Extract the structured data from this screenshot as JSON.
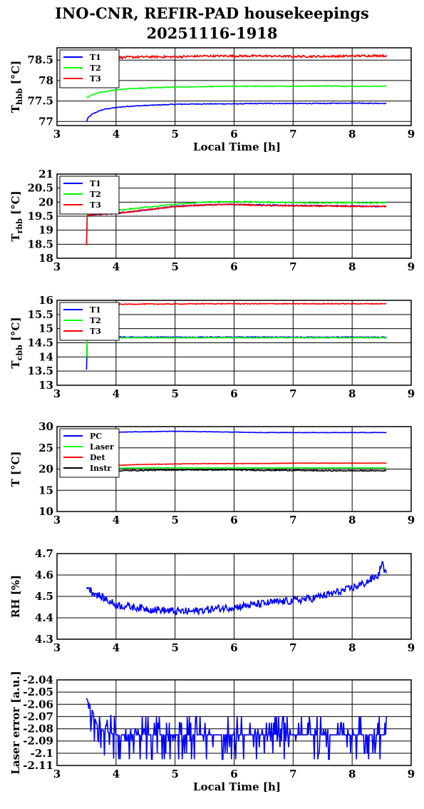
{
  "title": "INO-CNR, REFIR-PAD housekeepings",
  "subtitle": "20251116-1918",
  "chart_data": [
    {
      "type": "line",
      "ylabel_main": "T",
      "ylabel_sub": "hbb",
      "ylabel_unit": " [°C]",
      "xlabel": "Local Time [h]",
      "xlim": [
        3,
        9
      ],
      "ylim": [
        76.9,
        78.8
      ],
      "xticks": [
        3,
        4,
        5,
        6,
        7,
        8,
        9
      ],
      "yticks": [
        77,
        77.5,
        78,
        78.5
      ],
      "ytick_labels": [
        "77",
        "77.5",
        "78",
        "78.5"
      ],
      "grid": true,
      "legend": "top-left",
      "x": [
        3.5,
        3.52,
        3.55,
        3.6,
        3.7,
        3.8,
        4.0,
        4.2,
        4.5,
        5.0,
        5.5,
        6.0,
        6.5,
        7.0,
        7.5,
        8.0,
        8.5,
        8.58
      ],
      "series": [
        {
          "name": "T1",
          "color": "#0000ff",
          "noise": 0.01,
          "values": [
            77.0,
            77.08,
            77.12,
            77.18,
            77.25,
            77.3,
            77.34,
            77.37,
            77.39,
            77.42,
            77.43,
            77.43,
            77.44,
            77.44,
            77.44,
            77.45,
            77.44,
            77.44
          ]
        },
        {
          "name": "T2",
          "color": "#00ff00",
          "noise": 0.01,
          "values": [
            77.58,
            77.6,
            77.62,
            77.65,
            77.7,
            77.73,
            77.77,
            77.8,
            77.82,
            77.84,
            77.85,
            77.86,
            77.86,
            77.86,
            77.87,
            77.86,
            77.86,
            77.87
          ]
        },
        {
          "name": "T3",
          "color": "#ff0000",
          "noise": 0.025,
          "values": [
            78.6,
            78.58,
            78.52,
            78.53,
            78.55,
            78.55,
            78.56,
            78.57,
            78.58,
            78.58,
            78.6,
            78.6,
            78.6,
            78.59,
            78.59,
            78.6,
            78.61,
            78.6
          ]
        }
      ]
    },
    {
      "type": "line",
      "ylabel_main": "T",
      "ylabel_sub": "rbb",
      "ylabel_unit": " [°C]",
      "xlabel": "",
      "xlim": [
        3,
        9
      ],
      "ylim": [
        18,
        21
      ],
      "xticks": [
        3,
        4,
        5,
        6,
        7,
        8,
        9
      ],
      "yticks": [
        18,
        18.5,
        19,
        19.5,
        20,
        20.5,
        21
      ],
      "ytick_labels": [
        "18",
        "18.5",
        "19",
        "19.5",
        "20",
        "20.5",
        "21"
      ],
      "grid": true,
      "legend": "top-left",
      "x": [
        3.5,
        3.51,
        3.52,
        3.6,
        3.8,
        4.0,
        4.5,
        5.0,
        5.5,
        6.0,
        6.5,
        7.0,
        7.5,
        8.0,
        8.5,
        8.58
      ],
      "series": [
        {
          "name": "T1",
          "color": "#0000ff",
          "noise": 0.02,
          "values": [
            18.48,
            19.5,
            19.52,
            19.55,
            19.58,
            19.6,
            19.72,
            19.85,
            19.9,
            19.92,
            19.9,
            19.88,
            19.87,
            19.86,
            19.85,
            19.85
          ]
        },
        {
          "name": "T2",
          "color": "#00ff00",
          "noise": 0.02,
          "values": [
            18.5,
            19.55,
            19.58,
            19.62,
            19.65,
            19.7,
            19.82,
            19.92,
            20.0,
            20.02,
            20.0,
            19.98,
            19.98,
            19.98,
            19.98,
            19.98
          ]
        },
        {
          "name": "T3",
          "color": "#ff0000",
          "noise": 0.02,
          "values": [
            18.45,
            19.5,
            19.52,
            19.55,
            19.57,
            19.6,
            19.72,
            19.84,
            19.9,
            19.92,
            19.88,
            19.87,
            19.86,
            19.85,
            19.85,
            19.85
          ]
        }
      ]
    },
    {
      "type": "line",
      "ylabel_main": "T",
      "ylabel_sub": "cbb",
      "ylabel_unit": " [°C]",
      "xlabel": "",
      "xlim": [
        3,
        9
      ],
      "ylim": [
        13,
        16
      ],
      "xticks": [
        3,
        4,
        5,
        6,
        7,
        8,
        9
      ],
      "yticks": [
        13,
        13.5,
        14,
        14.5,
        15,
        15.5,
        16
      ],
      "ytick_labels": [
        "13",
        "13.5",
        "14",
        "14.5",
        "15",
        "15.5",
        "16"
      ],
      "grid": true,
      "legend": "top-left",
      "x": [
        3.5,
        3.51,
        3.53,
        3.6,
        4.0,
        4.5,
        5.0,
        5.5,
        6.0,
        6.5,
        7.0,
        7.5,
        8.0,
        8.5,
        8.58
      ],
      "series": [
        {
          "name": "T1",
          "color": "#0000ff",
          "noise": 0.015,
          "values": [
            13.55,
            14.6,
            14.68,
            14.7,
            14.7,
            14.7,
            14.7,
            14.7,
            14.7,
            14.7,
            14.7,
            14.7,
            14.7,
            14.7,
            14.7
          ]
        },
        {
          "name": "T2",
          "color": "#00ff00",
          "noise": 0.015,
          "values": [
            14.0,
            14.6,
            14.66,
            14.68,
            14.68,
            14.68,
            14.68,
            14.68,
            14.68,
            14.68,
            14.68,
            14.68,
            14.68,
            14.68,
            14.68
          ]
        },
        {
          "name": "T3",
          "color": "#ff0000",
          "noise": 0.015,
          "values": [
            15.85,
            15.85,
            15.85,
            15.85,
            15.86,
            15.87,
            15.87,
            15.88,
            15.88,
            15.88,
            15.88,
            15.88,
            15.88,
            15.88,
            15.88
          ]
        }
      ]
    },
    {
      "type": "line",
      "ylabel_main": "T [°C]",
      "ylabel_sub": "",
      "ylabel_unit": "",
      "xlabel": "",
      "xlim": [
        3,
        9
      ],
      "ylim": [
        10,
        30
      ],
      "xticks": [
        3,
        4,
        5,
        6,
        7,
        8,
        9
      ],
      "yticks": [
        10,
        15,
        20,
        25,
        30
      ],
      "ytick_labels": [
        "10",
        "15",
        "20",
        "25",
        "30"
      ],
      "grid": true,
      "legend": "top-left",
      "x": [
        3.5,
        3.6,
        4.0,
        4.5,
        5.0,
        5.5,
        6.0,
        6.5,
        7.0,
        7.5,
        8.0,
        8.5,
        8.58
      ],
      "series": [
        {
          "name": "PC",
          "color": "#0000ff",
          "noise": 0.05,
          "values": [
            28.3,
            28.5,
            28.7,
            28.8,
            28.9,
            28.8,
            28.7,
            28.6,
            28.6,
            28.6,
            28.6,
            28.6,
            28.6
          ]
        },
        {
          "name": "Laser",
          "color": "#00ff00",
          "noise": 0.03,
          "values": [
            20.0,
            20.1,
            20.2,
            20.3,
            20.3,
            20.3,
            20.3,
            20.3,
            20.3,
            20.3,
            20.3,
            20.3,
            20.3
          ]
        },
        {
          "name": "Det",
          "color": "#ff0000",
          "noise": 0.05,
          "values": [
            20.6,
            20.7,
            20.9,
            21.1,
            21.2,
            21.3,
            21.3,
            21.3,
            21.4,
            21.4,
            21.4,
            21.4,
            21.4
          ]
        },
        {
          "name": "Instr",
          "color": "#000000",
          "noise": 0.12,
          "values": [
            19.3,
            19.4,
            19.6,
            19.7,
            19.8,
            19.8,
            19.8,
            19.7,
            19.7,
            19.6,
            19.6,
            19.6,
            19.6
          ]
        }
      ]
    },
    {
      "type": "line",
      "ylabel_main": "RH [%]",
      "ylabel_sub": "",
      "ylabel_unit": "",
      "xlabel": "",
      "xlim": [
        3,
        9
      ],
      "ylim": [
        4.3,
        4.7
      ],
      "xticks": [
        3,
        4,
        5,
        6,
        7,
        8,
        9
      ],
      "yticks": [
        4.3,
        4.4,
        4.5,
        4.6,
        4.7
      ],
      "ytick_labels": [
        "4.3",
        "4.4",
        "4.5",
        "4.6",
        "4.7"
      ],
      "grid": true,
      "legend": "",
      "x": [
        3.5,
        3.6,
        3.8,
        4.0,
        4.3,
        4.6,
        5.0,
        5.3,
        5.6,
        6.0,
        6.3,
        6.6,
        7.0,
        7.3,
        7.6,
        7.9,
        8.2,
        8.45,
        8.5,
        8.58
      ],
      "series": [
        {
          "name": "",
          "color": "#0000ff",
          "noise": 0.018,
          "values": [
            4.55,
            4.52,
            4.49,
            4.46,
            4.45,
            4.44,
            4.43,
            4.43,
            4.44,
            4.45,
            4.46,
            4.47,
            4.48,
            4.49,
            4.51,
            4.53,
            4.56,
            4.6,
            4.66,
            4.6
          ]
        }
      ]
    },
    {
      "type": "line",
      "ylabel_main": "Laser error [a.u.]",
      "ylabel_sub": "",
      "ylabel_unit": "",
      "xlabel": "Local Time [h]",
      "xlim": [
        3,
        9
      ],
      "ylim": [
        -2.11,
        -2.04
      ],
      "xticks": [
        3,
        4,
        5,
        6,
        7,
        8,
        9
      ],
      "yticks": [
        -2.11,
        -2.1,
        -2.09,
        -2.08,
        -2.07,
        -2.06,
        -2.05,
        -2.04
      ],
      "ytick_labels": [
        "-2.11",
        "-2.1",
        "-2.09",
        "-2.08",
        "-2.07",
        "-2.06",
        "-2.05",
        "-2.04"
      ],
      "grid": true,
      "legend": "",
      "x": [
        3.5,
        3.55,
        3.6,
        3.7,
        4.0,
        5.0,
        6.0,
        7.0,
        8.0,
        8.58
      ],
      "series": [
        {
          "name": "",
          "color": "#0000ff",
          "noise": 0.0,
          "jump": 0.005,
          "values": [
            -2.055,
            -2.06,
            -2.065,
            -2.08,
            -2.085,
            -2.085,
            -2.085,
            -2.085,
            -2.085,
            -2.085
          ]
        }
      ]
    }
  ]
}
